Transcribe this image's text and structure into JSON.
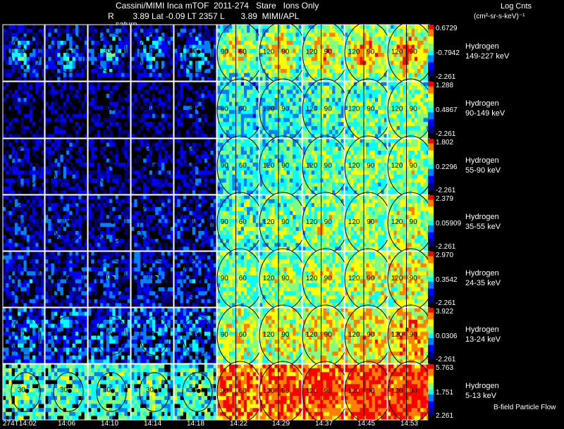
{
  "header": {
    "line1": "Cassini/MIMI Inca mTOF  2011-274   Stare   Ions Only",
    "line2": "R        3.89 Lat -0.09 LT 2357 L       3.89  MIMI/APL",
    "units_title": "Log Cnts",
    "units_sub": "(cm²-sr-s-keV)⁻¹",
    "overlay_label": "saturn"
  },
  "time_ticks": [
    "274T14:02",
    "14:06",
    "14:10",
    "14:14",
    "14:18",
    "14:22",
    "14:29",
    "14:37",
    "14:45",
    "14:53"
  ],
  "footer_note": "B-field Particle Flow",
  "rows": [
    {
      "species": "Hydrogen",
      "energy": "149-227 keV",
      "cb_max": "0.6729",
      "cb_mid": "-0.7942",
      "cb_min": "-2.261",
      "level": 0.18,
      "vig": 0.45
    },
    {
      "species": "Hydrogen",
      "energy": "90-149 keV",
      "cb_max": "1.288",
      "cb_mid": "0.4867",
      "cb_min": "-2.261",
      "level": 0.12,
      "vig": 0.1
    },
    {
      "species": "Hydrogen",
      "energy": "55-90 keV",
      "cb_max": "1.802",
      "cb_mid": "0.2296",
      "cb_min": "-2.261",
      "level": 0.14,
      "vig": 0.12
    },
    {
      "species": "Hydrogen",
      "energy": "35-55 keV",
      "cb_max": "2.379",
      "cb_mid": "0.05909",
      "cb_min": "-2.261",
      "level": 0.18,
      "vig": 0.15
    },
    {
      "species": "Hydrogen",
      "energy": "24-35 keV",
      "cb_max": "2.970",
      "cb_mid": "0.3542",
      "cb_min": "-2.261",
      "level": 0.22,
      "vig": 0.15
    },
    {
      "species": "Hydrogen",
      "energy": "13-24 keV",
      "cb_max": "3.922",
      "cb_mid": "0.0306",
      "cb_min": "-2.261",
      "level": 0.3,
      "vig": 0.12
    },
    {
      "species": "Hydrogen",
      "energy": "5-13 keV",
      "cb_max": "5.763",
      "cb_mid": "1.751",
      "cb_min": "2.261",
      "level": 0.52,
      "vig": 0.12
    }
  ],
  "cell_labels": {
    "early": [
      "30",
      "60"
    ],
    "late": [
      "90",
      "60",
      "120",
      "90",
      "6"
    ]
  },
  "chart_data": {
    "type": "heatmap",
    "title": "Cassini/MIMI Inca mTOF  2011-274   Stare   Ions Only",
    "x": [
      "274T14:02",
      "14:06",
      "14:10",
      "14:14",
      "14:18",
      "14:22",
      "14:29",
      "14:37",
      "14:45",
      "14:53"
    ],
    "y": [
      "149-227 keV",
      "90-149 keV",
      "55-90 keV",
      "35-55 keV",
      "24-35 keV",
      "13-24 keV",
      "5-13 keV"
    ],
    "colorbar_label": "Log Cnts (cm²-sr-s-keV)⁻¹",
    "colorbar_ranges": [
      {
        "min": -2.261,
        "mid": -0.7942,
        "max": 0.6729
      },
      {
        "min": -2.261,
        "mid": 0.4867,
        "max": 1.288
      },
      {
        "min": -2.261,
        "mid": 0.2296,
        "max": 1.802
      },
      {
        "min": -2.261,
        "mid": 0.05909,
        "max": 2.379
      },
      {
        "min": -2.261,
        "mid": 0.3542,
        "max": 2.97
      },
      {
        "min": -2.261,
        "mid": 0.0306,
        "max": 3.922
      },
      {
        "min": 2.261,
        "mid": 1.751,
        "max": 5.763
      }
    ]
  },
  "colormap": [
    "#000000",
    "#000080",
    "#0000ff",
    "#0080ff",
    "#00ffff",
    "#80ff80",
    "#ffff00",
    "#ff8000",
    "#ff0000"
  ]
}
